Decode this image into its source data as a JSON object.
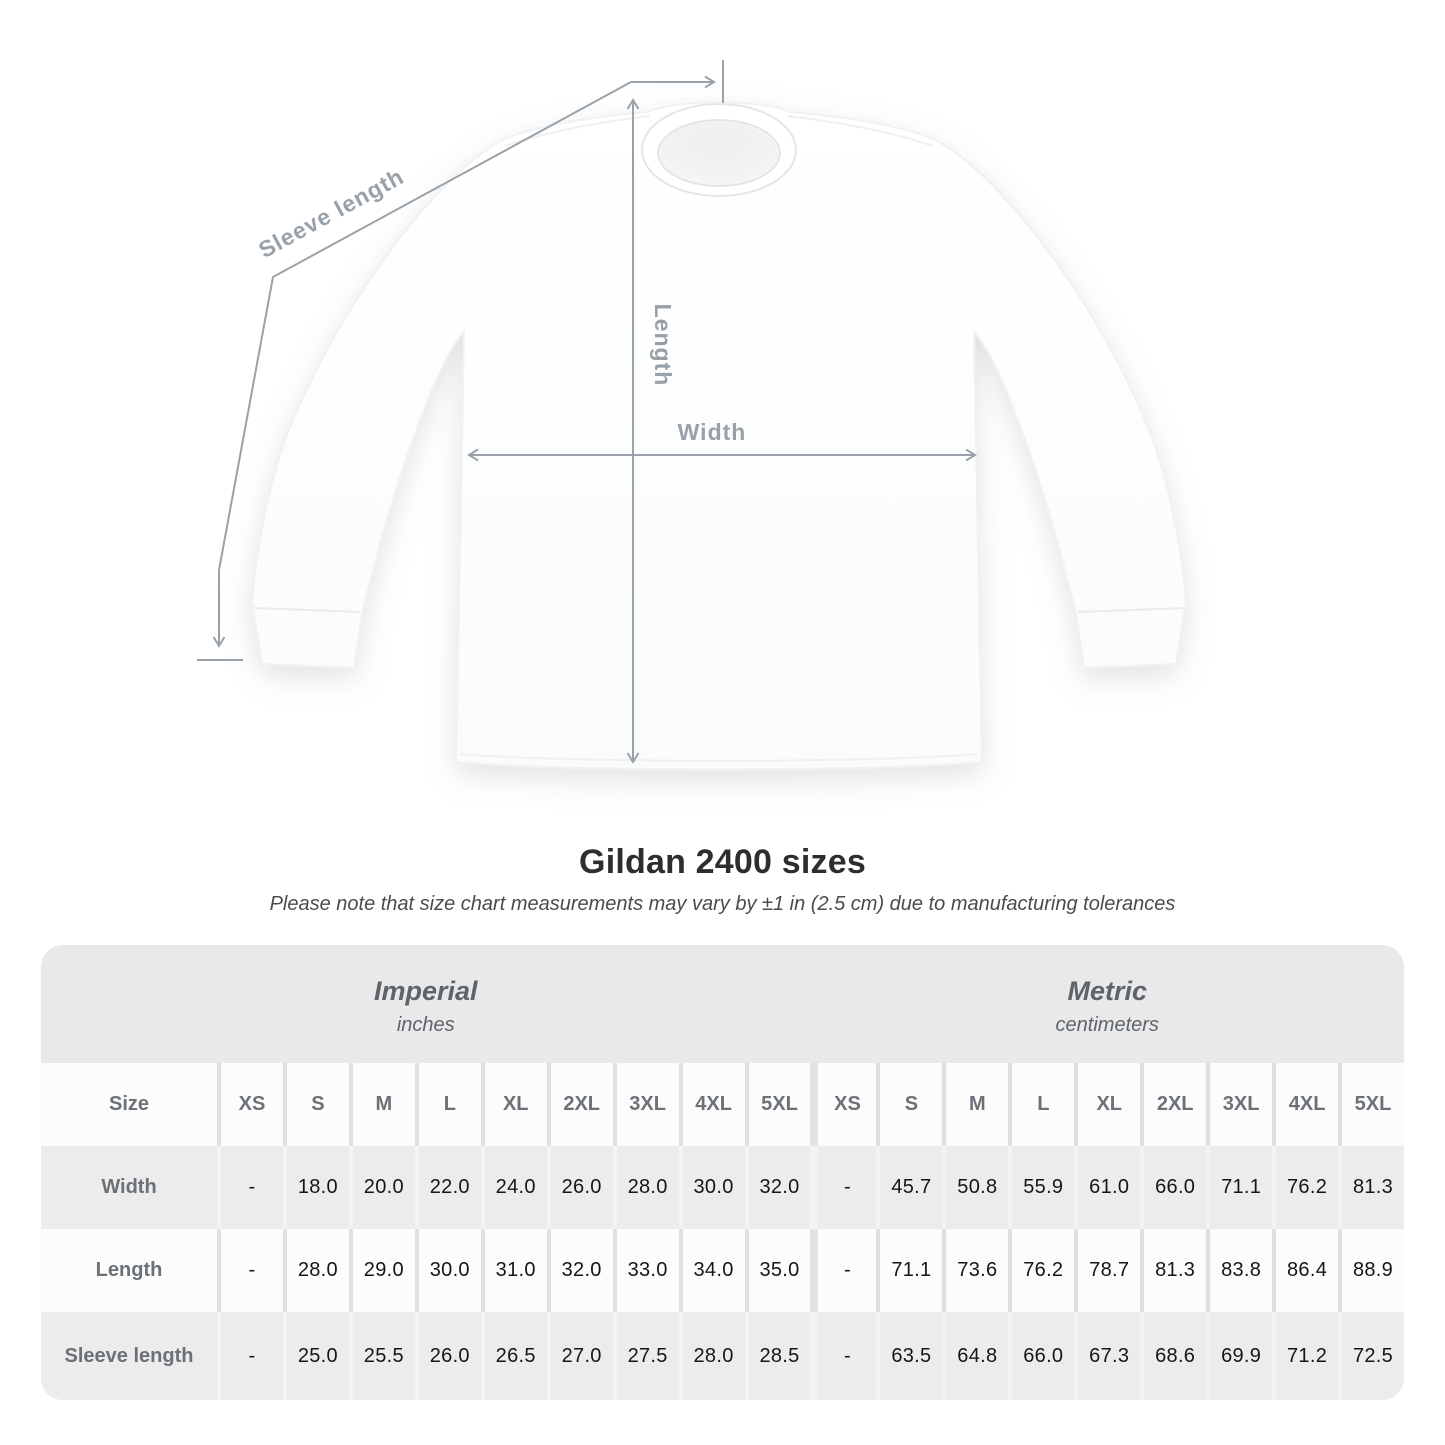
{
  "diagram": {
    "sleeve_length_label": "Sleeve length",
    "length_label": "Length",
    "width_label": "Width",
    "line_color": "#9aa2a9"
  },
  "chart_data": {
    "type": "table",
    "title": "Gildan 2400 sizes",
    "note": "Please note that size chart measurements may vary by ±1 in (2.5 cm) due to manufacturing tolerances",
    "corner_label": "Size",
    "unit_groups": [
      {
        "name": "Imperial",
        "unit": "inches"
      },
      {
        "name": "Metric",
        "unit": "centimeters"
      }
    ],
    "sizes": [
      "XS",
      "S",
      "M",
      "L",
      "XL",
      "2XL",
      "3XL",
      "4XL",
      "5XL"
    ],
    "rows": [
      {
        "label": "Width",
        "imperial": [
          "-",
          "18.0",
          "20.0",
          "22.0",
          "24.0",
          "26.0",
          "28.0",
          "30.0",
          "32.0"
        ],
        "metric": [
          "-",
          "45.7",
          "50.8",
          "55.9",
          "61.0",
          "66.0",
          "71.1",
          "76.2",
          "81.3"
        ]
      },
      {
        "label": "Length",
        "imperial": [
          "-",
          "28.0",
          "29.0",
          "30.0",
          "31.0",
          "32.0",
          "33.0",
          "34.0",
          "35.0"
        ],
        "metric": [
          "-",
          "71.1",
          "73.6",
          "76.2",
          "78.7",
          "81.3",
          "83.8",
          "86.4",
          "88.9"
        ]
      },
      {
        "label": "Sleeve length",
        "imperial": [
          "-",
          "25.0",
          "25.5",
          "26.0",
          "26.5",
          "27.0",
          "27.5",
          "28.0",
          "28.5"
        ],
        "metric": [
          "-",
          "63.5",
          "64.8",
          "66.0",
          "67.3",
          "68.6",
          "69.9",
          "71.2",
          "72.5"
        ]
      }
    ]
  }
}
